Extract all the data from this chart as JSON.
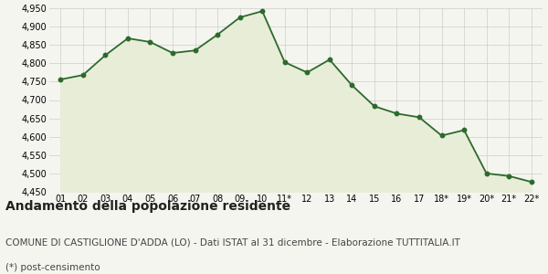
{
  "x_labels": [
    "01",
    "02",
    "03",
    "04",
    "05",
    "06",
    "07",
    "08",
    "09",
    "10",
    "11*",
    "12",
    "13",
    "14",
    "15",
    "16",
    "17",
    "18*",
    "19*",
    "20*",
    "21*",
    "22*"
  ],
  "y_values": [
    4756,
    4768,
    4822,
    4868,
    4858,
    4828,
    4835,
    4878,
    4925,
    4942,
    4803,
    4775,
    4810,
    4740,
    4683,
    4663,
    4653,
    4603,
    4618,
    4500,
    4493,
    4477
  ],
  "line_color": "#2d6a2d",
  "fill_color": "#e8edd8",
  "marker_color": "#2d6a2d",
  "background_color": "#f5f5f0",
  "grid_color": "#cccccc",
  "ylim": [
    4450,
    4950
  ],
  "yticks": [
    4450,
    4500,
    4550,
    4600,
    4650,
    4700,
    4750,
    4800,
    4850,
    4900,
    4950
  ],
  "title": "Andamento della popolazione residente",
  "subtitle": "COMUNE DI CASTIGLIONE D'ADDA (LO) - Dati ISTAT al 31 dicembre - Elaborazione TUTTITALIA.IT",
  "footnote": "(*) post-censimento",
  "title_fontsize": 10,
  "subtitle_fontsize": 7.5,
  "footnote_fontsize": 7.5
}
